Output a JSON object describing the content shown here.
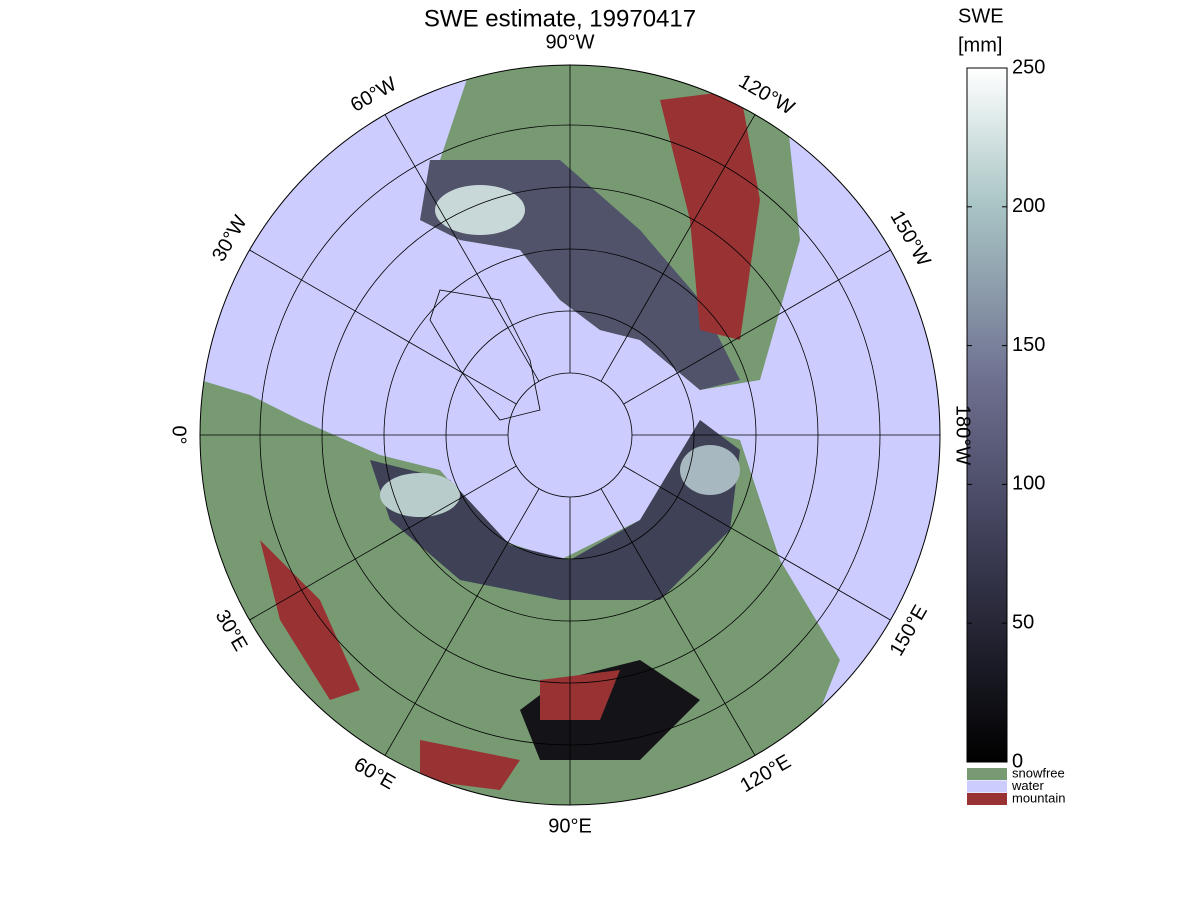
{
  "title": "SWE estimate, 19970417",
  "longitude_labels": [
    "0°",
    "30°E",
    "60°E",
    "90°E",
    "120°E",
    "150°E",
    "180°W",
    "150°W",
    "120°W",
    "90°W",
    "60°W",
    "30°W"
  ],
  "colorbar": {
    "label": [
      "SWE",
      "[mm]"
    ],
    "lim": [
      0,
      250
    ],
    "ticks": [
      0,
      50,
      100,
      150,
      200,
      250
    ]
  },
  "legend": [
    {
      "name": "snowfree",
      "color": "#779a72"
    },
    {
      "name": "water",
      "color": "#ccccff"
    },
    {
      "name": "mountain",
      "color": "#993333"
    }
  ]
}
